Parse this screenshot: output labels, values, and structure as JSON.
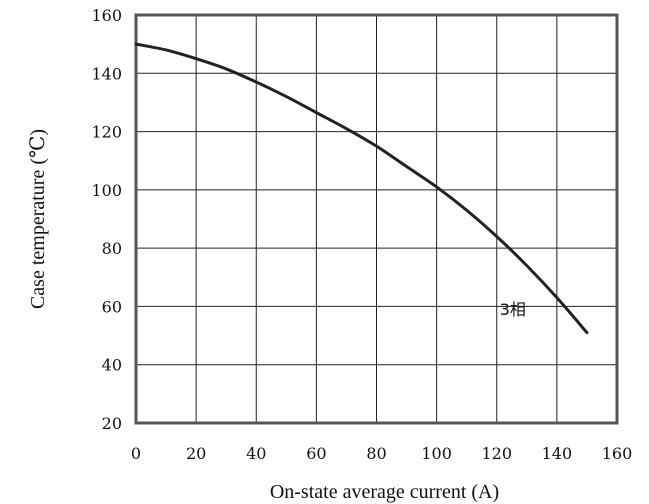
{
  "chart_data": {
    "type": "line",
    "title": "",
    "xlabel": "On-state average current (A)",
    "ylabel": "Case temperature (℃)",
    "xlim": [
      0,
      160
    ],
    "ylim": [
      20,
      160
    ],
    "xticks": [
      0,
      20,
      40,
      60,
      80,
      100,
      120,
      140,
      160
    ],
    "yticks": [
      20,
      40,
      60,
      80,
      100,
      120,
      140,
      160
    ],
    "grid": true,
    "series": [
      {
        "name": "3相",
        "color": "#222222",
        "x": [
          0,
          10,
          20,
          30,
          40,
          50,
          60,
          70,
          80,
          90,
          100,
          110,
          120,
          130,
          140,
          150
        ],
        "y": [
          150,
          148,
          145,
          141.5,
          137,
          132,
          126.5,
          121,
          115,
          108,
          101,
          93,
          84,
          74,
          63,
          51
        ]
      }
    ],
    "annotations": [
      {
        "text": "3相",
        "x": 121,
        "y": 57
      }
    ]
  }
}
